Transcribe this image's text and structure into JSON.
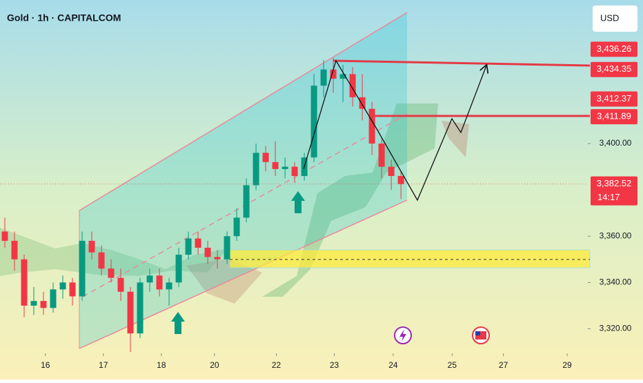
{
  "chart_data": {
    "type": "candlestick",
    "title": "Gold · 1h · CAPITALCOM",
    "currency": "USD",
    "up_color": "#089981",
    "down_color": "#f23645",
    "x": [
      0.5,
      1.5,
      2.5,
      3.5,
      4.5,
      5.5,
      6.5,
      7.5,
      8.5,
      9.5,
      10.5,
      11.5,
      12.5,
      13.5,
      14.5,
      15.5,
      16.5,
      17.5,
      18.5,
      19.5,
      20.5,
      21.5,
      22.5,
      23.5,
      24.5,
      25.5,
      26.5,
      27.5,
      28.5,
      29.5,
      30.5,
      31.5,
      32.5,
      33.5,
      34.5,
      35.5,
      36.5,
      37.5,
      38.5,
      39.5,
      40.5,
      41.5
    ],
    "open": [
      3362,
      3358,
      3350,
      3330,
      3332,
      3329,
      3337,
      3340,
      3334,
      3358,
      3353,
      3346,
      3342,
      3336,
      3318,
      3340,
      3343,
      3337,
      3340,
      3352,
      3359,
      3355,
      3351,
      3350,
      3360,
      3368,
      3382,
      3396,
      3392,
      3389,
      3390,
      3386,
      3394,
      3425,
      3432,
      3428,
      3430,
      3420,
      3415,
      3400,
      3390,
      3386
    ],
    "high": [
      3368,
      3362,
      3352,
      3338,
      3336,
      3340,
      3343,
      3342,
      3362,
      3362,
      3356,
      3350,
      3346,
      3338,
      3342,
      3346,
      3346,
      3342,
      3355,
      3362,
      3362,
      3358,
      3354,
      3362,
      3372,
      3385,
      3400,
      3399,
      3401,
      3394,
      3392,
      3396,
      3430,
      3436,
      3437,
      3434,
      3433,
      3430,
      3418,
      3402,
      3393,
      3388
    ],
    "low": [
      3355,
      3345,
      3325,
      3326,
      3326,
      3327,
      3333,
      3330,
      3332,
      3350,
      3343,
      3340,
      3332,
      3310,
      3316,
      3336,
      3334,
      3330,
      3338,
      3350,
      3352,
      3348,
      3346,
      3348,
      3358,
      3366,
      3380,
      3388,
      3386,
      3385,
      3383,
      3384,
      3392,
      3420,
      3422,
      3418,
      3416,
      3410,
      3395,
      3385,
      3380,
      3376
    ],
    "close": [
      3358,
      3350,
      3330,
      3332,
      3329,
      3337,
      3340,
      3334,
      3358,
      3353,
      3346,
      3342,
      3336,
      3318,
      3340,
      3343,
      3337,
      3340,
      3352,
      3359,
      3355,
      3351,
      3350,
      3360,
      3368,
      3382,
      3396,
      3392,
      3389,
      3390,
      3386,
      3394,
      3425,
      3432,
      3428,
      3430,
      3420,
      3415,
      3400,
      3390,
      3386,
      3382.52
    ],
    "xlim": [
      0,
      60.7
    ],
    "xticks": [
      {
        "value": 4.7,
        "label": "16"
      },
      {
        "value": 10.7,
        "label": "17"
      },
      {
        "value": 16.7,
        "label": "18"
      },
      {
        "value": 22.2,
        "label": "20"
      },
      {
        "value": 28.6,
        "label": "22"
      },
      {
        "value": 34.6,
        "label": "23"
      },
      {
        "value": 40.7,
        "label": "24"
      },
      {
        "value": 46.8,
        "label": "25"
      },
      {
        "value": 52.1,
        "label": "27"
      },
      {
        "value": 58.7,
        "label": "29"
      }
    ],
    "ylim": [
      3310,
      3462
    ],
    "yticks": [
      {
        "value": 3320,
        "label": "3,320.00"
      },
      {
        "value": 3340,
        "label": "3,340.00"
      },
      {
        "value": 3360,
        "label": "3,360.00"
      },
      {
        "value": 3400,
        "label": "3,400.00"
      }
    ],
    "price_labels": [
      {
        "value": 3436.26,
        "label": "3,436.26"
      },
      {
        "value": 3434.35,
        "label": "3,434.35"
      },
      {
        "value": 3412.37,
        "label": "3,412.37"
      },
      {
        "value": 3411.89,
        "label": "3,411.89"
      },
      {
        "value": 3382.52,
        "label": "3,382.52"
      }
    ],
    "countdown": "14:17"
  }
}
